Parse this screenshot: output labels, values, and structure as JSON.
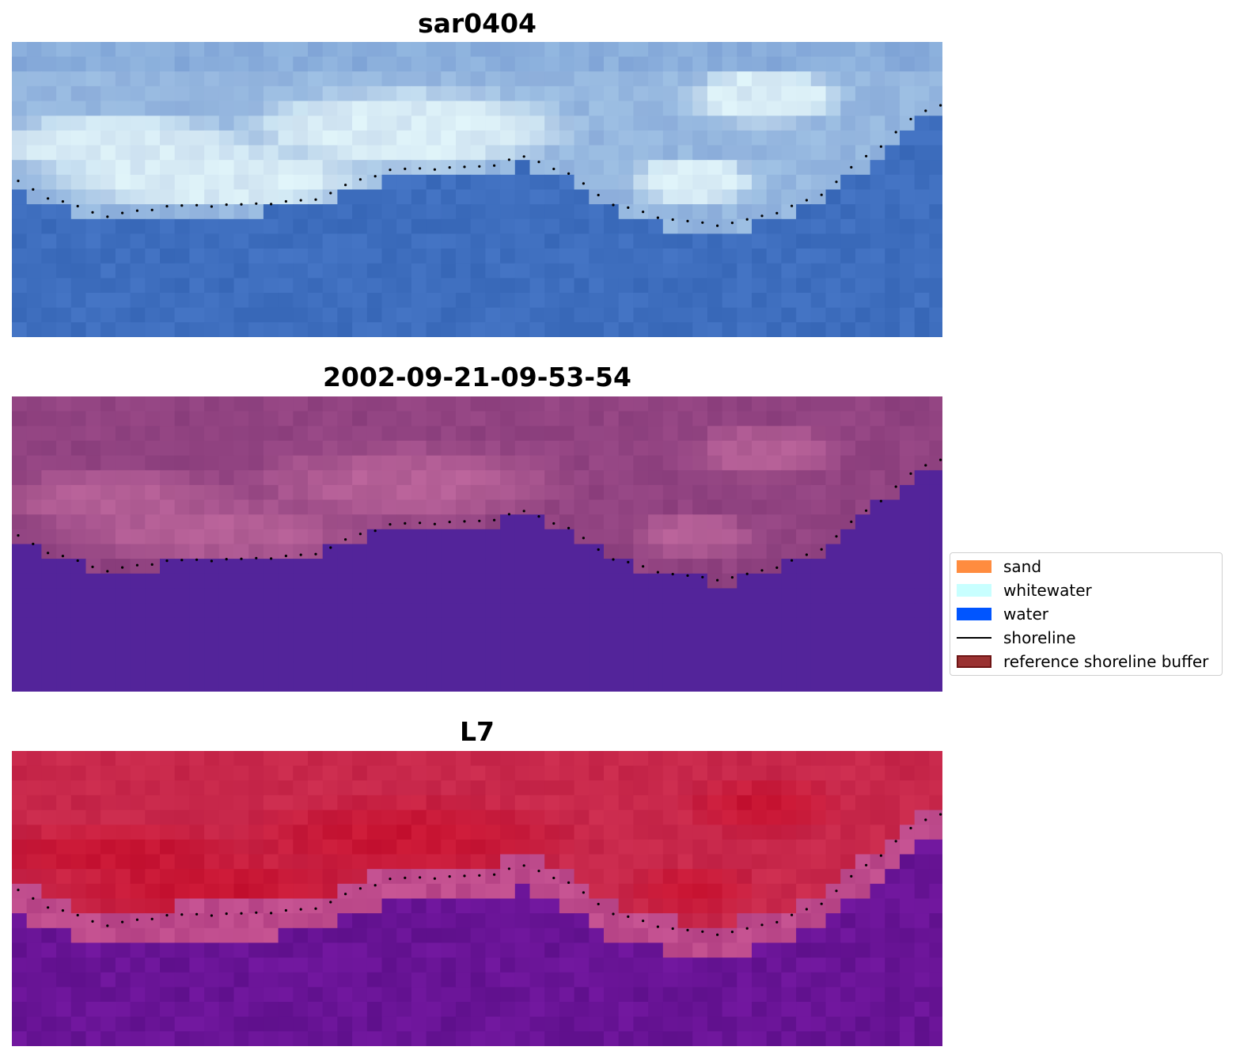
{
  "panels": [
    {
      "title": "sar0404",
      "style": "rgb"
    },
    {
      "title": "2002-09-21-09-53-54",
      "style": "classified"
    },
    {
      "title": "L7",
      "style": "index"
    }
  ],
  "legend": {
    "items": [
      {
        "label": "sand",
        "kind": "patch",
        "color": "#ff8c3f",
        "edge": "#ff8c3f"
      },
      {
        "label": "whitewater",
        "kind": "patch",
        "color": "#c8ffff",
        "edge": "#c8ffff"
      },
      {
        "label": "water",
        "kind": "patch",
        "color": "#0055ff",
        "edge": "#0055ff"
      },
      {
        "label": "shoreline",
        "kind": "line",
        "color": "#000000"
      },
      {
        "label": "reference shoreline buffer",
        "kind": "patch",
        "color": "#9a3232",
        "edge": "#6e1414"
      }
    ]
  },
  "colors": {
    "water_class": "#53249a",
    "shoreline_dots": "#000000"
  }
}
